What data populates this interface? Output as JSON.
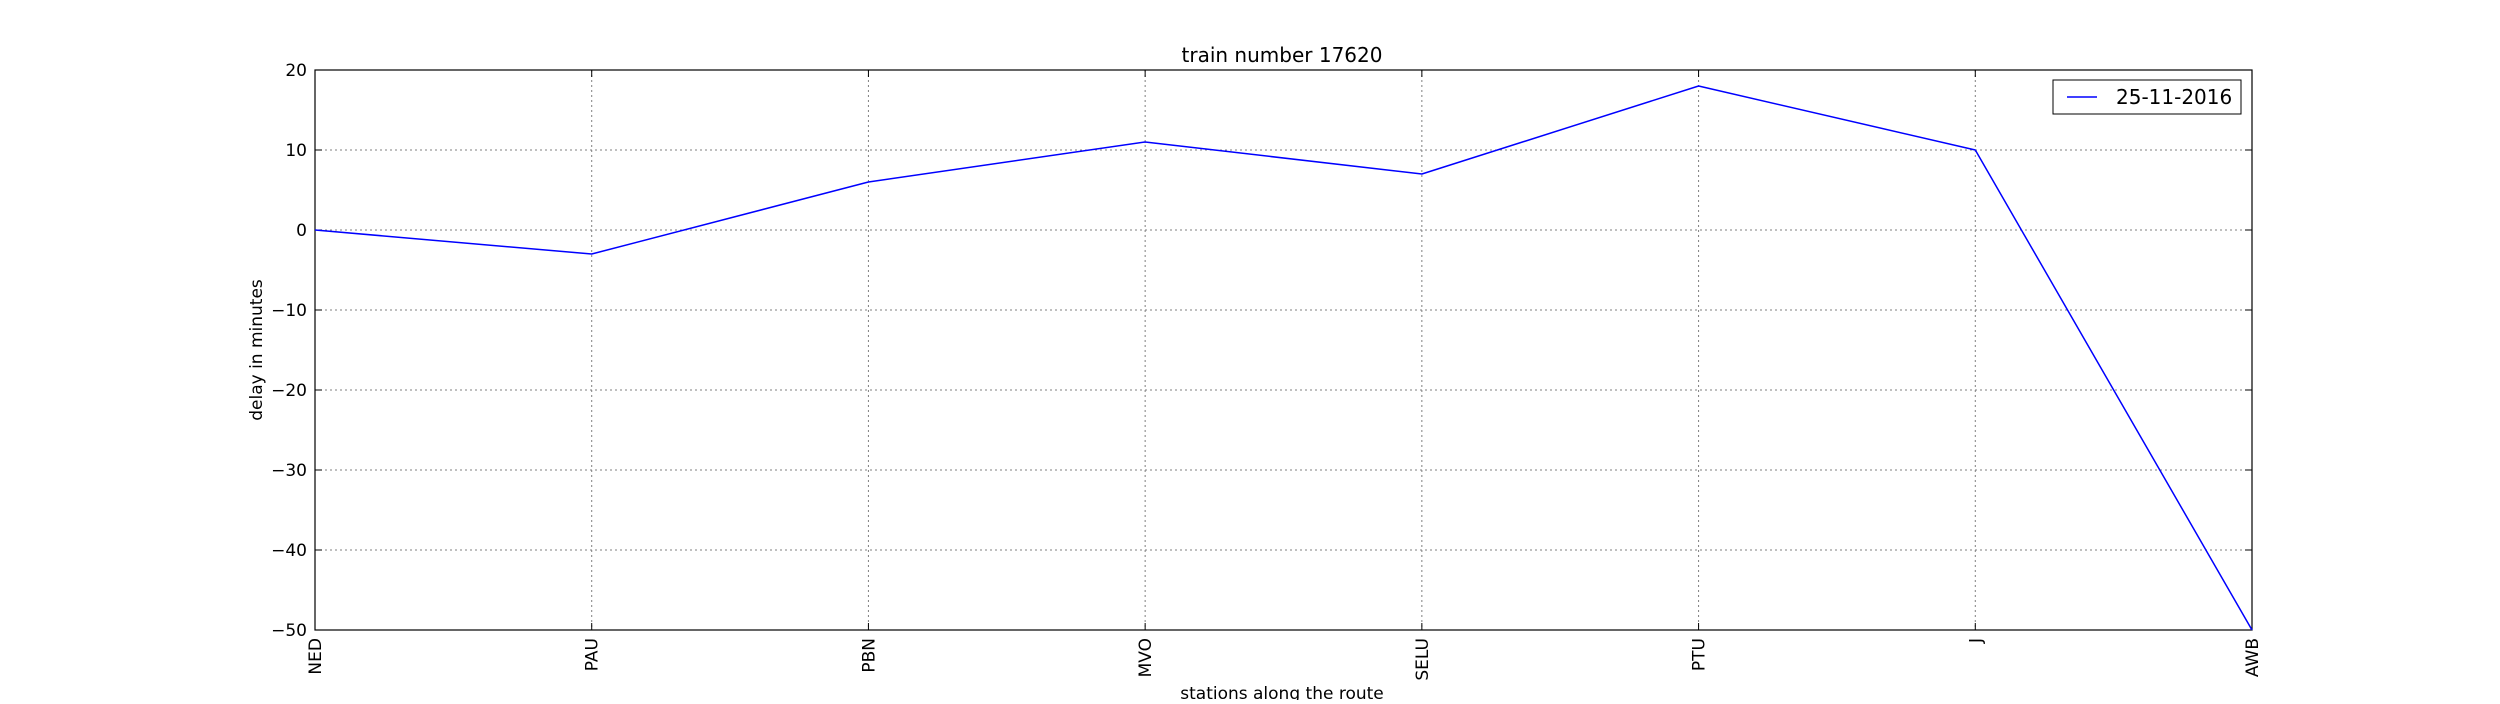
{
  "chart_data": {
    "type": "line",
    "title": "train number 17620",
    "xlabel": "stations along the route",
    "ylabel": "delay in minutes",
    "categories": [
      "NED",
      "PAU",
      "PBN",
      "MVO",
      "SELU",
      "PTU",
      "J",
      "AWB"
    ],
    "yticks": [
      20,
      10,
      0,
      -10,
      -20,
      -30,
      -40,
      -50
    ],
    "ytick_labels": [
      "20",
      "10",
      "0",
      "−10",
      "−20",
      "−30",
      "−40",
      "−50"
    ],
    "ylim": [
      -50,
      20
    ],
    "grid": true,
    "legend_position": "top-right",
    "series": [
      {
        "name": "25-11-2016",
        "color": "#0000ff",
        "values": [
          0,
          -3,
          6,
          11,
          7,
          18,
          10,
          -50
        ]
      }
    ]
  }
}
